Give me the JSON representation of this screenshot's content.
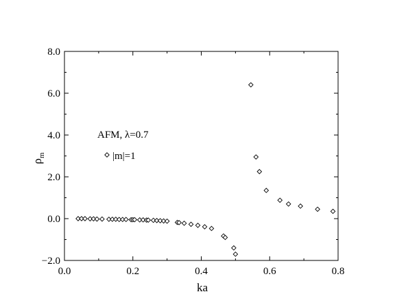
{
  "chart_data": {
    "type": "scatter",
    "title": "",
    "xlabel": "ka",
    "ylabel_main": "ρ",
    "ylabel_sub": "m",
    "xlim": [
      0.0,
      0.8
    ],
    "ylim": [
      -2.0,
      8.0
    ],
    "xticks": [
      0.0,
      0.2,
      0.4,
      0.6,
      0.8
    ],
    "xtick_labels": [
      "0.0",
      "0.2",
      "0.4",
      "0.6",
      "0.8"
    ],
    "yticks": [
      -2.0,
      0.0,
      2.0,
      4.0,
      6.0,
      8.0
    ],
    "ytick_labels": [
      "−2.0",
      "0.0",
      "2.0",
      "4.0",
      "6.0",
      "8.0"
    ],
    "grid": false,
    "annotation": "AFM, λ=0.7",
    "legend_marker": "diamond",
    "series": [
      {
        "name": "|m|=1",
        "marker": "diamond",
        "points": [
          [
            0.04,
            0.0
          ],
          [
            0.05,
            0.0
          ],
          [
            0.06,
            0.0
          ],
          [
            0.075,
            -0.01
          ],
          [
            0.085,
            -0.01
          ],
          [
            0.095,
            -0.02
          ],
          [
            0.11,
            -0.02
          ],
          [
            0.13,
            -0.03
          ],
          [
            0.14,
            -0.03
          ],
          [
            0.15,
            -0.03
          ],
          [
            0.16,
            -0.04
          ],
          [
            0.17,
            -0.04
          ],
          [
            0.18,
            -0.04
          ],
          [
            0.195,
            -0.05
          ],
          [
            0.2,
            -0.05
          ],
          [
            0.205,
            -0.05
          ],
          [
            0.22,
            -0.06
          ],
          [
            0.23,
            -0.06
          ],
          [
            0.24,
            -0.07
          ],
          [
            0.245,
            -0.07
          ],
          [
            0.26,
            -0.08
          ],
          [
            0.27,
            -0.09
          ],
          [
            0.28,
            -0.1
          ],
          [
            0.29,
            -0.11
          ],
          [
            0.3,
            -0.12
          ],
          [
            0.33,
            -0.18
          ],
          [
            0.335,
            -0.19
          ],
          [
            0.35,
            -0.22
          ],
          [
            0.37,
            -0.27
          ],
          [
            0.39,
            -0.32
          ],
          [
            0.41,
            -0.39
          ],
          [
            0.43,
            -0.47
          ],
          [
            0.465,
            -0.83
          ],
          [
            0.47,
            -0.9
          ],
          [
            0.495,
            -1.4
          ],
          [
            0.5,
            -1.7
          ],
          [
            0.545,
            6.4
          ],
          [
            0.56,
            2.95
          ],
          [
            0.57,
            2.25
          ],
          [
            0.59,
            1.35
          ],
          [
            0.63,
            0.88
          ],
          [
            0.655,
            0.7
          ],
          [
            0.69,
            0.6
          ],
          [
            0.74,
            0.45
          ],
          [
            0.785,
            0.35
          ]
        ]
      }
    ]
  }
}
